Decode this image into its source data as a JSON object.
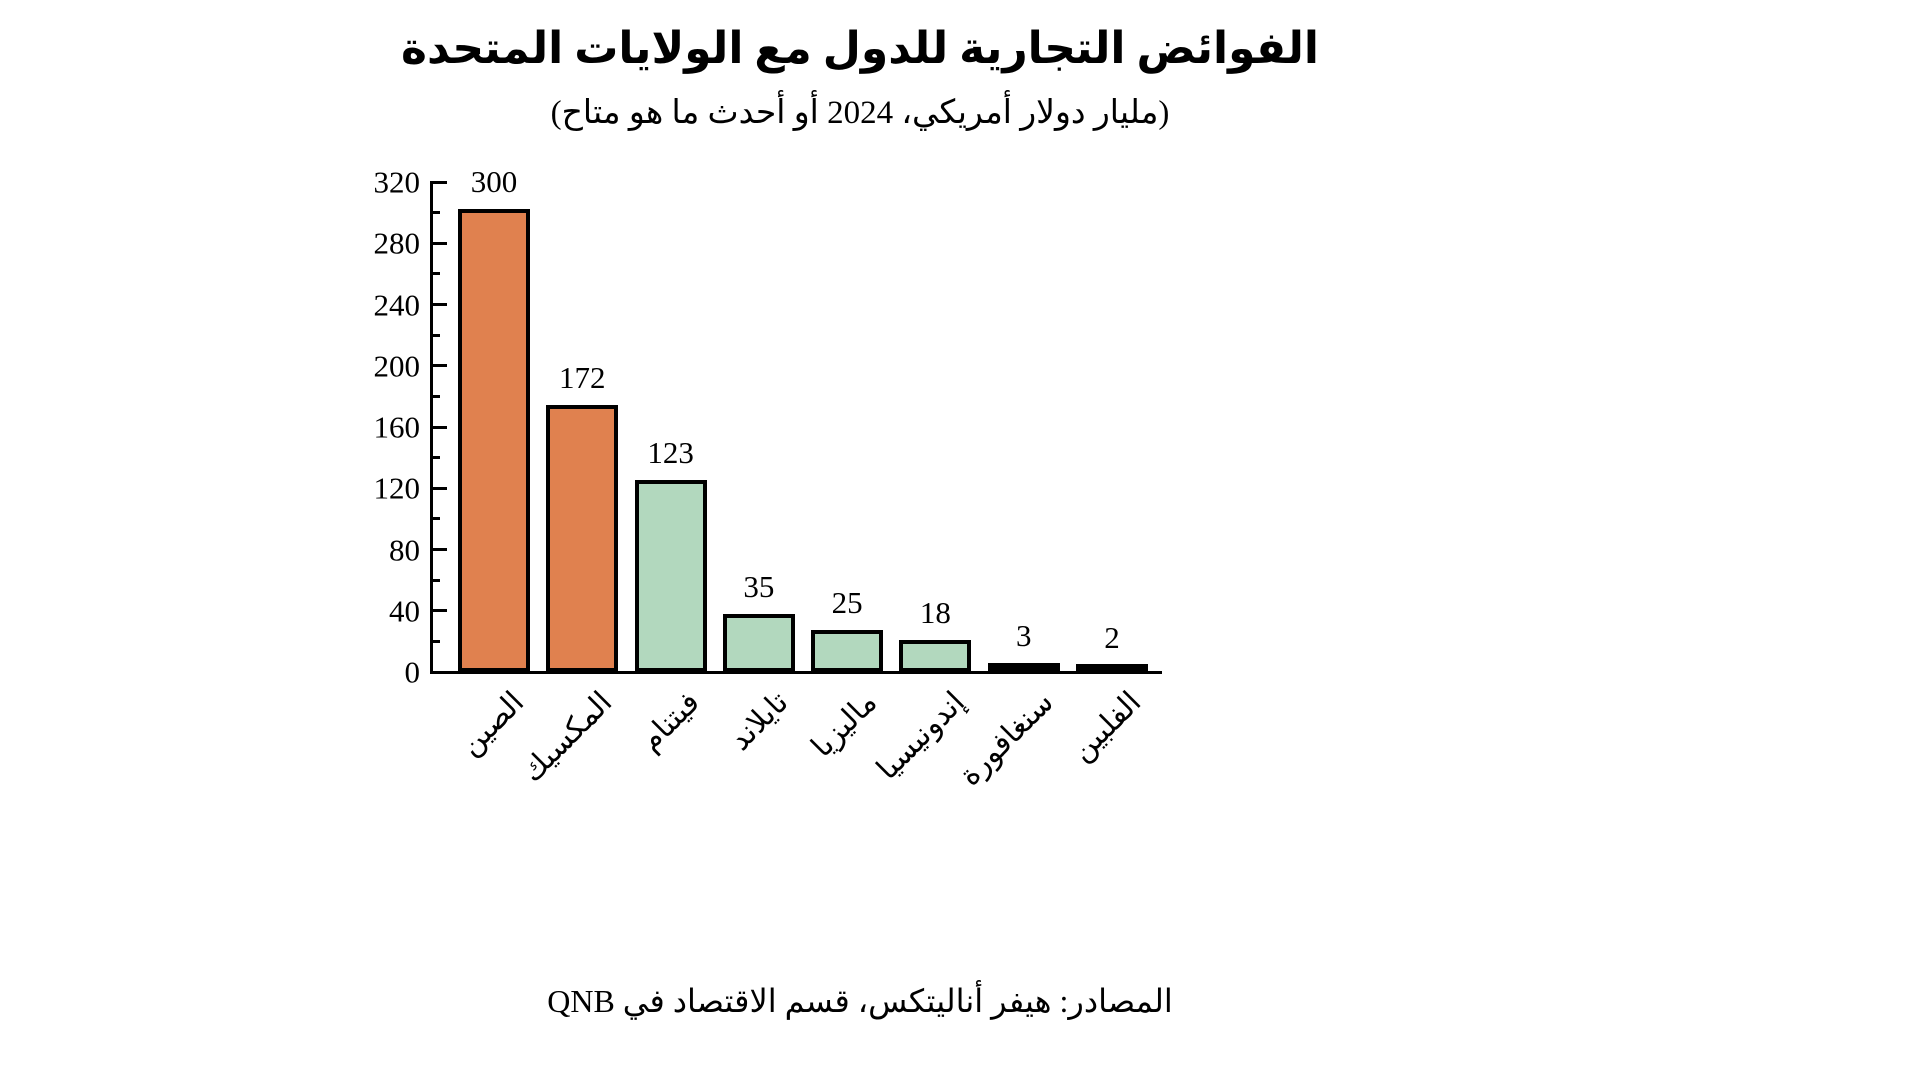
{
  "header": {
    "title": "الفوائض التجارية للدول مع الولايات المتحدة",
    "subtitle": "(مليار دولار أمريكي، 2024 أو أحدث ما هو متاح)"
  },
  "footer": {
    "source": "المصادر: هيفر أناليتكس، قسم الاقتصاد في QNB"
  },
  "colors": {
    "orange": "#E0814F",
    "green": "#B2D8BE",
    "black": "#000000",
    "axis": "#000000",
    "background": "#FFFFFF"
  },
  "chart_data": {
    "type": "bar",
    "title": "الفوائض التجارية للدول مع الولايات المتحدة",
    "subtitle": "(مليار دولار أمريكي، 2024 أو أحدث ما هو متاح)",
    "source": "المصادر: هيفر أناليتكس، قسم الاقتصاد في QNB",
    "categories": [
      "الصين",
      "المكسيك",
      "فيتنام",
      "تايلاند",
      "ماليزيا",
      "إندونيسيا",
      "سنغافورة",
      "الفلبين"
    ],
    "category_ids": [
      "china",
      "mexico",
      "vietnam",
      "thailand",
      "malaysia",
      "indonesia",
      "singapore",
      "philippines"
    ],
    "values": [
      300,
      172,
      123,
      35,
      25,
      18,
      3,
      2
    ],
    "bar_colors": [
      "#E0814F",
      "#E0814F",
      "#B2D8BE",
      "#B2D8BE",
      "#B2D8BE",
      "#B2D8BE",
      "#000000",
      "#000000"
    ],
    "xlabel": "",
    "ylabel": "",
    "ylim": [
      0,
      320
    ],
    "yticks": [
      0,
      40,
      80,
      120,
      160,
      200,
      240,
      280,
      320
    ],
    "minor_tick_step": 20,
    "grid": false,
    "legend": false,
    "value_labels": true,
    "x_label_rotation_deg": 45
  }
}
